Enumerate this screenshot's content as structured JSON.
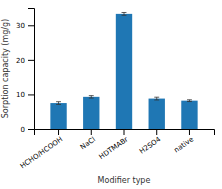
{
  "chart_data": {
    "type": "bar",
    "categories": [
      "HCHO/HCOOH",
      "NaCl",
      "HDTMABr",
      "H2SO4",
      "native"
    ],
    "values": [
      7.5,
      9.3,
      33.3,
      8.8,
      8.2
    ],
    "errors": [
      0.4,
      0.35,
      0.4,
      0.4,
      0.25
    ],
    "xlabel": "Modifier type",
    "ylabel": "Sorption capacity (mg/g)",
    "ylim": [
      0,
      35
    ],
    "yticks": [
      0,
      10,
      20,
      30
    ],
    "grid": false
  }
}
